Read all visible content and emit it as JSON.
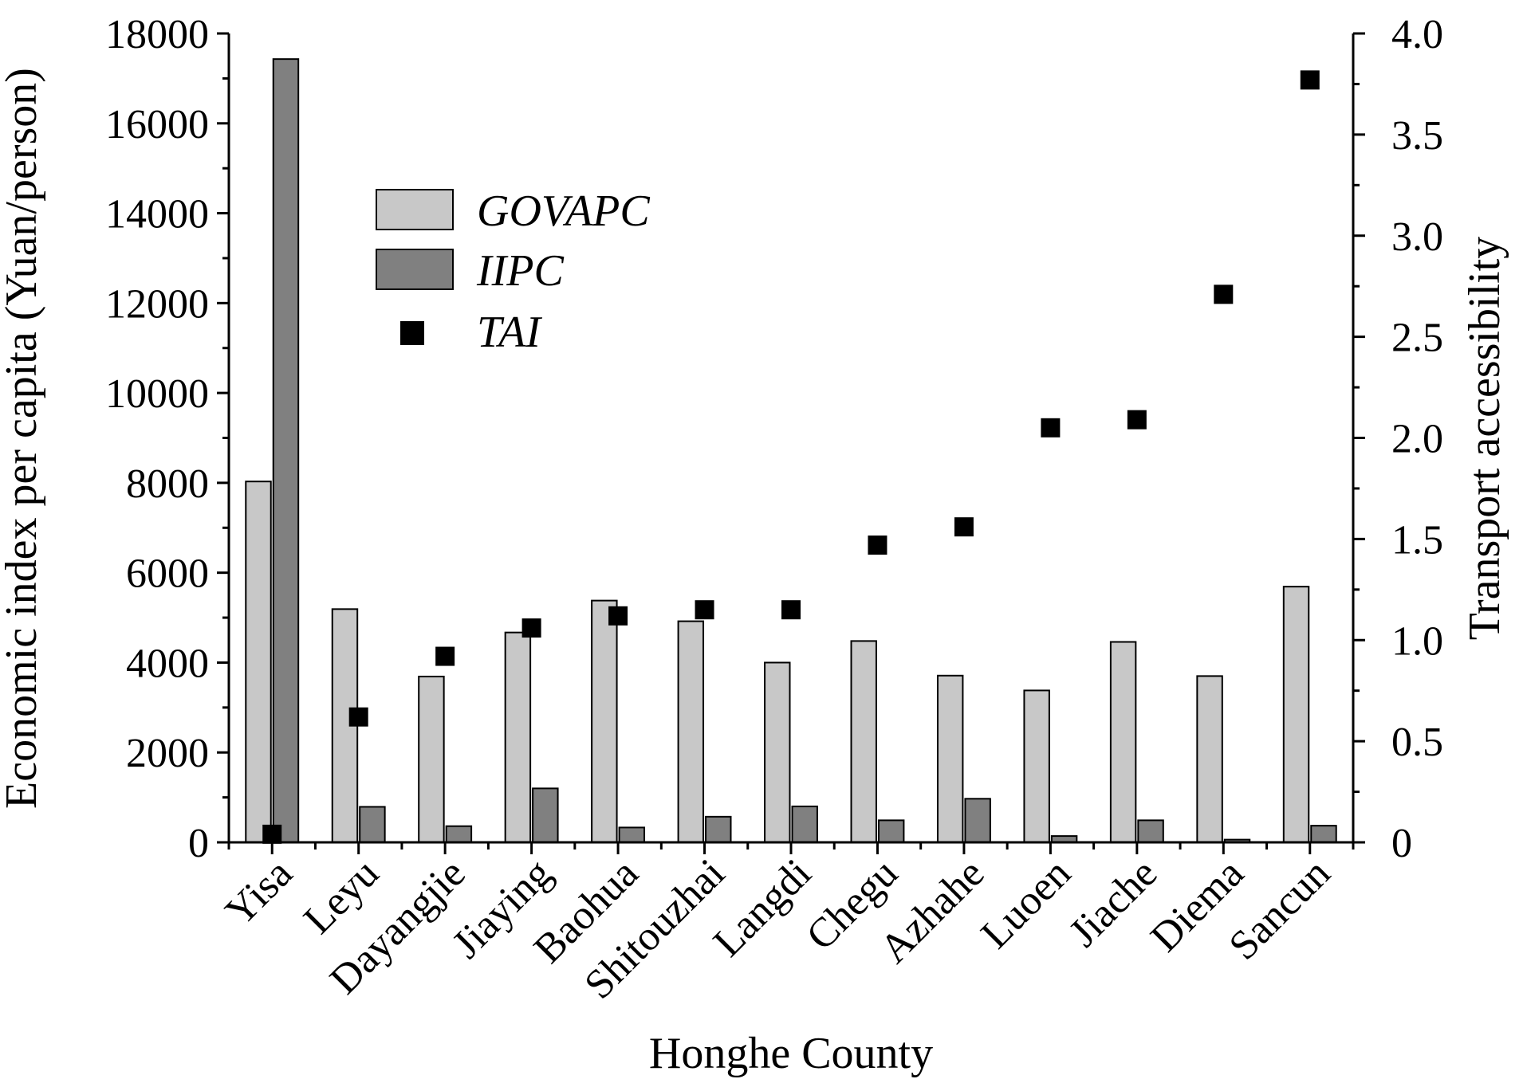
{
  "chart_data": {
    "type": "bar",
    "title": "",
    "xlabel": "Honghe County",
    "ylabel": "Economic index per capita (Yuan/person)",
    "y2label": "Transport accessibility",
    "ylim": [
      0,
      18000
    ],
    "y2lim": [
      0,
      4.0
    ],
    "yticks": [
      "0",
      "2000",
      "4000",
      "6000",
      "8000",
      "10000",
      "12000",
      "14000",
      "16000",
      "18000"
    ],
    "y2ticks": [
      "0",
      "0.5",
      "1.0",
      "1.5",
      "2.0",
      "2.5",
      "3.0",
      "3.5",
      "4.0"
    ],
    "categories": [
      "Yisa",
      "Leyu",
      "Dayangjie",
      "Jiaying",
      "Baohua",
      "Shitouzhai",
      "Langdi",
      "Chegu",
      "Azhahe",
      "Luoen",
      "Jiache",
      "Diema",
      "Sancun"
    ],
    "series": [
      {
        "name": "GOVAPC",
        "kind": "bar",
        "axis": "left",
        "color": "#c8c8c8",
        "values": [
          8030,
          5190,
          3690,
          4670,
          5380,
          4920,
          4000,
          4480,
          3710,
          3380,
          4460,
          3700,
          5690
        ]
      },
      {
        "name": "IIPC",
        "kind": "bar",
        "axis": "left",
        "color": "#808080",
        "values": [
          17430,
          790,
          360,
          1200,
          330,
          570,
          800,
          490,
          970,
          140,
          490,
          60,
          370
        ]
      },
      {
        "name": "TAI",
        "kind": "scatter",
        "axis": "right",
        "color": "#000000",
        "values": [
          0.04,
          0.62,
          0.92,
          1.06,
          1.12,
          1.15,
          1.15,
          1.47,
          1.56,
          2.05,
          2.09,
          2.71,
          3.77
        ]
      }
    ],
    "legend": {
      "position": "top-left",
      "items": [
        "GOVAPC",
        "IIPC",
        "TAI"
      ]
    },
    "grid": false
  }
}
